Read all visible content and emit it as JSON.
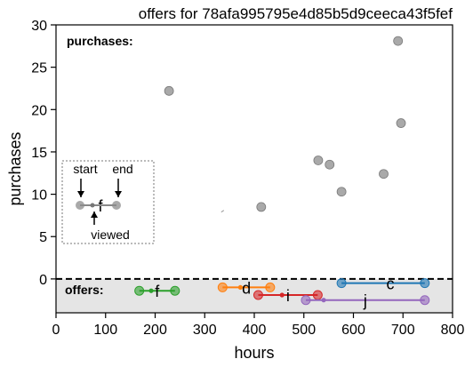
{
  "chart_data": {
    "type": "scatter",
    "title": "offers for 78afa995795e4d85b5d9ceeca43f5fef",
    "xlabel": "hours",
    "ylabel": "purchases",
    "xlim": [
      0,
      800
    ],
    "ylim": [
      -4,
      30
    ],
    "xticks": [
      0,
      100,
      200,
      300,
      400,
      500,
      600,
      700,
      800
    ],
    "yticks": [
      0,
      5,
      10,
      15,
      20,
      25,
      30
    ],
    "grid": false,
    "purchases_label": "purchases:",
    "offers_label": "offers:",
    "purchases": [
      {
        "x": 228,
        "y": 22.2
      },
      {
        "x": 414,
        "y": 8.5
      },
      {
        "x": 529,
        "y": 14.0
      },
      {
        "x": 552,
        "y": 13.5
      },
      {
        "x": 576,
        "y": 10.3
      },
      {
        "x": 661,
        "y": 12.4
      },
      {
        "x": 690,
        "y": 28.1
      },
      {
        "x": 696,
        "y": 18.4
      }
    ],
    "stray_mark": {
      "x": 336,
      "y": 8.0
    },
    "offers": [
      {
        "label": "f",
        "y": -1.4,
        "start": 168,
        "viewed": 192,
        "end": 240,
        "color": "#2ca02c"
      },
      {
        "label": "d",
        "y": -1.0,
        "start": 336,
        "viewed": 372,
        "end": 432,
        "color": "#ff7f0e"
      },
      {
        "label": "i",
        "y": -1.9,
        "start": 408,
        "viewed": 456,
        "end": 528,
        "color": "#d62728"
      },
      {
        "label": "c",
        "y": -0.5,
        "start": 576,
        "viewed": null,
        "end": 744,
        "color": "#1f77b4"
      },
      {
        "label": "j",
        "y": -2.5,
        "start": 504,
        "viewed": 540,
        "end": 744,
        "color": "#9467bd"
      }
    ],
    "legend": {
      "start_label": "start",
      "end_label": "end",
      "viewed_label": "viewed",
      "marker_label": "f"
    }
  }
}
